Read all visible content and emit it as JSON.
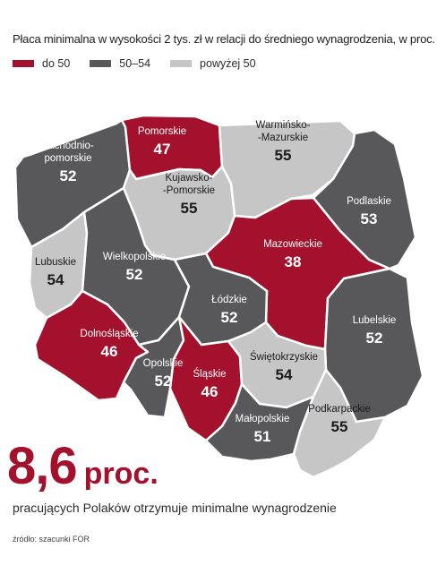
{
  "title": "Płaca minimalna w wysokości 2 tys. zł w relacji do średniego wynagrodzenia, w proc.",
  "legend": [
    {
      "label": "do 50",
      "color": "#a3112c"
    },
    {
      "label": "50–54",
      "color": "#58585a"
    },
    {
      "label": "powyżej 50",
      "color": "#c6c6c6"
    }
  ],
  "regions": [
    {
      "id": "zachodniopomorskie",
      "name_lines": [
        "Zachodnio-",
        "pomorskie"
      ],
      "value": "52",
      "category": "50–54"
    },
    {
      "id": "pomorskie",
      "name_lines": [
        "Pomorskie"
      ],
      "value": "47",
      "category": "do 50"
    },
    {
      "id": "warminsko-mazurskie",
      "name_lines": [
        "Warmińsko-",
        "-Mazurskie"
      ],
      "value": "55",
      "category": "powyżej 50"
    },
    {
      "id": "podlaskie",
      "name_lines": [
        "Podlaskie"
      ],
      "value": "53",
      "category": "50–54"
    },
    {
      "id": "kujawsko-pomorskie",
      "name_lines": [
        "Kujawsko-",
        "-Pomorskie"
      ],
      "value": "55",
      "category": "powyżej 50"
    },
    {
      "id": "lubuskie",
      "name_lines": [
        "Lubuskie"
      ],
      "value": "54",
      "category": "powyżej 50"
    },
    {
      "id": "wielkopolskie",
      "name_lines": [
        "Wielkopolskie"
      ],
      "value": "52",
      "category": "50–54"
    },
    {
      "id": "mazowieckie",
      "name_lines": [
        "Mazowieckie"
      ],
      "value": "38",
      "category": "do 50"
    },
    {
      "id": "lodzkie",
      "name_lines": [
        "Łódzkie"
      ],
      "value": "52",
      "category": "50–54"
    },
    {
      "id": "lubelskie",
      "name_lines": [
        "Lubelskie"
      ],
      "value": "52",
      "category": "50–54"
    },
    {
      "id": "dolnoslaskie",
      "name_lines": [
        "Dolnośląskie"
      ],
      "value": "46",
      "category": "do 50"
    },
    {
      "id": "opolskie",
      "name_lines": [
        "Opolskie"
      ],
      "value": "52",
      "category": "50–54"
    },
    {
      "id": "slaskie",
      "name_lines": [
        "Śląskie"
      ],
      "value": "46",
      "category": "do 50"
    },
    {
      "id": "swietokrzyskie",
      "name_lines": [
        "Świętokrzyskie"
      ],
      "value": "54",
      "category": "powyżej 50"
    },
    {
      "id": "malopolskie",
      "name_lines": [
        "Małopolskie"
      ],
      "value": "51",
      "category": "50–54"
    },
    {
      "id": "podkarpackie",
      "name_lines": [
        "Podkarpackie"
      ],
      "value": "55",
      "category": "powyżej 50"
    }
  ],
  "headline": {
    "number": "8,6",
    "unit": "proc."
  },
  "subtitle": "pracujących Polaków otrzymuje minimalne wynagrodzenie",
  "source": "źródło: szacunki FOR"
}
